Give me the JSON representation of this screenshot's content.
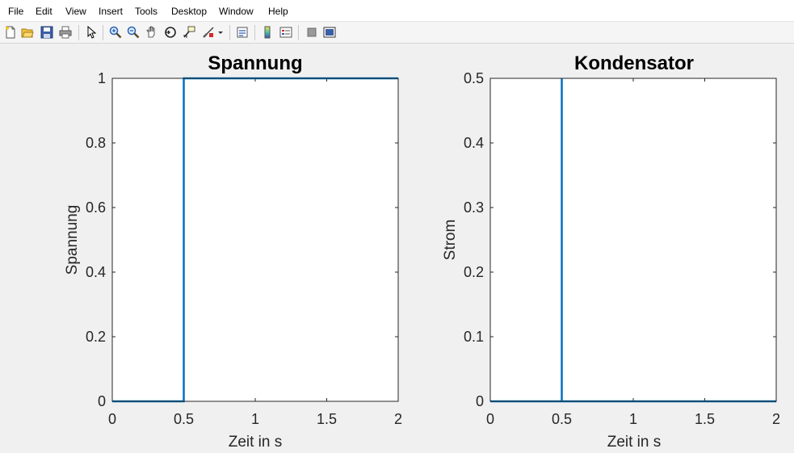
{
  "menubar": {
    "items": [
      "File",
      "Edit",
      "View",
      "Insert",
      "Tools",
      "Desktop",
      "Window",
      "Help"
    ]
  },
  "toolbar": {
    "icons": [
      "new-figure-icon",
      "open-file-icon",
      "save-icon",
      "print-icon",
      "pointer-icon",
      "zoom-in-icon",
      "zoom-out-icon",
      "pan-icon",
      "rotate-3d-icon",
      "data-cursor-icon",
      "brush-icon",
      "link-plot-icon",
      "colorbar-icon",
      "legend-icon",
      "hide-plot-tools-icon",
      "show-plot-tools-icon"
    ]
  },
  "colors": {
    "line": "#0072bd",
    "axes": "#262626",
    "figure_bg": "#f0f0f0"
  },
  "chart_data": [
    {
      "type": "line",
      "title": "Spannung",
      "xlabel": "Zeit in s",
      "ylabel": "Spannung",
      "xlim": [
        0,
        2
      ],
      "ylim": [
        0,
        1
      ],
      "xticks": [
        0,
        0.5,
        1,
        1.5,
        2
      ],
      "xtick_labels": [
        "0",
        "0.5",
        "1",
        "1.5",
        "2"
      ],
      "yticks": [
        0,
        0.2,
        0.4,
        0.6,
        0.8,
        1
      ],
      "ytick_labels": [
        "0",
        "0.2",
        "0.4",
        "0.6",
        "0.8",
        "1"
      ],
      "grid": false,
      "series": [
        {
          "x": [
            0,
            0.5,
            0.5,
            2
          ],
          "y": [
            0,
            0,
            1,
            1
          ]
        }
      ]
    },
    {
      "type": "line",
      "title": "Kondensator",
      "xlabel": "Zeit in s",
      "ylabel": "Strom",
      "xlim": [
        0,
        2
      ],
      "ylim": [
        0,
        0.5
      ],
      "xticks": [
        0,
        0.5,
        1,
        1.5,
        2
      ],
      "xtick_labels": [
        "0",
        "0.5",
        "1",
        "1.5",
        "2"
      ],
      "yticks": [
        0,
        0.1,
        0.2,
        0.3,
        0.4,
        0.5
      ],
      "ytick_labels": [
        "0",
        "0.1",
        "0.2",
        "0.3",
        "0.4",
        "0.5"
      ],
      "grid": false,
      "series": [
        {
          "x": [
            0,
            0.5,
            0.5,
            0.5,
            2
          ],
          "y": [
            0,
            0,
            0.5,
            0,
            0
          ]
        }
      ]
    }
  ]
}
